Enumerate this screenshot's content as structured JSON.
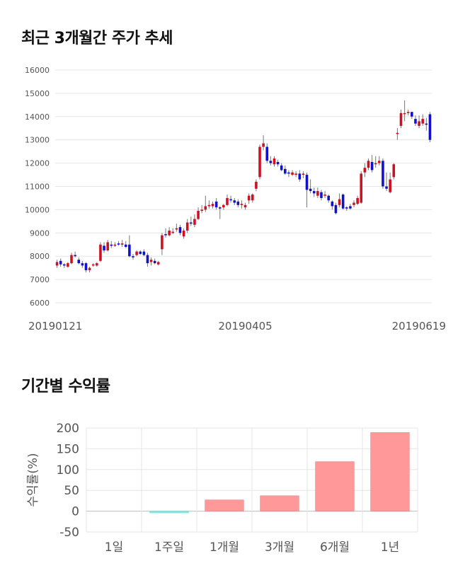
{
  "chart_data": [
    {
      "type": "candlestick",
      "title": "최근 3개월간 주가 추세",
      "y_ticks": [
        6000,
        7000,
        8000,
        9000,
        10000,
        11000,
        12000,
        13000,
        14000,
        15000,
        16000
      ],
      "ylim": [
        6000,
        16000
      ],
      "x_labels": [
        "20190121",
        "20190405",
        "20190619"
      ],
      "x_label_index": [
        0,
        52,
        104
      ],
      "colors": {
        "up": "#cc1122",
        "down": "#1111cc",
        "grid": "#e6e6e6"
      },
      "candles": [
        [
          7600,
          7750,
          7500,
          7850
        ],
        [
          7800,
          7650,
          7550,
          7900
        ],
        [
          7650,
          7600,
          7500,
          7700
        ],
        [
          7550,
          7700,
          7500,
          7750
        ],
        [
          7700,
          8050,
          7650,
          8150
        ],
        [
          8050,
          8000,
          7950,
          8200
        ],
        [
          7850,
          7700,
          7650,
          7950
        ],
        [
          7700,
          7600,
          7500,
          7800
        ],
        [
          7700,
          7400,
          7300,
          7750
        ],
        [
          7400,
          7500,
          7300,
          7550
        ],
        [
          7600,
          7650,
          7550,
          7700
        ],
        [
          7600,
          7700,
          7550,
          7750
        ],
        [
          7800,
          8500,
          7750,
          8600
        ],
        [
          8450,
          8250,
          8150,
          8600
        ],
        [
          8250,
          8600,
          8200,
          8700
        ],
        [
          8500,
          8450,
          8350,
          8650
        ],
        [
          8450,
          8500,
          8400,
          8600
        ],
        [
          8550,
          8500,
          8450,
          8650
        ],
        [
          8500,
          8550,
          8400,
          8700
        ],
        [
          8500,
          8400,
          8350,
          8650
        ],
        [
          8500,
          8000,
          7950,
          8900
        ],
        [
          8000,
          7950,
          7850,
          8100
        ],
        [
          8050,
          8200,
          8000,
          8250
        ],
        [
          8200,
          8100,
          8050,
          8250
        ],
        [
          8200,
          8050,
          8000,
          8300
        ],
        [
          8050,
          7700,
          7550,
          8150
        ],
        [
          7750,
          7850,
          7600,
          7950
        ],
        [
          7800,
          7700,
          7650,
          7900
        ],
        [
          7650,
          7750,
          7600,
          7800
        ],
        [
          8300,
          8900,
          8050,
          9000
        ],
        [
          8950,
          8900,
          8800,
          9200
        ],
        [
          8900,
          9100,
          8850,
          9250
        ],
        [
          9000,
          9050,
          8950,
          9200
        ],
        [
          9150,
          9200,
          9050,
          9400
        ],
        [
          9250,
          9000,
          8900,
          9350
        ],
        [
          8850,
          9100,
          8750,
          9200
        ],
        [
          9100,
          9450,
          9000,
          9600
        ],
        [
          9450,
          9400,
          9300,
          9700
        ],
        [
          9350,
          9600,
          9250,
          9800
        ],
        [
          9600,
          9950,
          9550,
          10100
        ],
        [
          9950,
          10000,
          9850,
          10200
        ],
        [
          10000,
          10150,
          9900,
          10600
        ],
        [
          10150,
          10200,
          10050,
          10400
        ],
        [
          10150,
          10250,
          10050,
          10350
        ],
        [
          10350,
          10100,
          10000,
          10500
        ],
        [
          10100,
          10050,
          9600,
          10150
        ],
        [
          10100,
          10200,
          10000,
          10250
        ],
        [
          10200,
          10500,
          10150,
          10650
        ],
        [
          10450,
          10400,
          10300,
          10600
        ],
        [
          10400,
          10300,
          10200,
          10500
        ],
        [
          10350,
          10200,
          10100,
          10450
        ],
        [
          10200,
          10250,
          10050,
          10400
        ],
        [
          10100,
          10200,
          10000,
          10300
        ],
        [
          10400,
          10600,
          10250,
          10700
        ],
        [
          10400,
          10650,
          10300,
          10700
        ],
        [
          10900,
          11200,
          10800,
          11300
        ],
        [
          11400,
          12700,
          11300,
          12800
        ],
        [
          12700,
          12850,
          12550,
          13200
        ],
        [
          12700,
          12100,
          12000,
          12850
        ],
        [
          12100,
          12000,
          11900,
          12300
        ],
        [
          11950,
          12200,
          11850,
          12300
        ],
        [
          12050,
          11950,
          11850,
          12150
        ],
        [
          11900,
          11700,
          11650,
          12000
        ],
        [
          11750,
          11550,
          11500,
          11900
        ],
        [
          11600,
          11550,
          11400,
          11700
        ],
        [
          11500,
          11600,
          11450,
          11700
        ],
        [
          11500,
          11550,
          11400,
          11650
        ],
        [
          11550,
          11300,
          11200,
          11700
        ],
        [
          11500,
          11550,
          11350,
          11650
        ],
        [
          11500,
          10850,
          10100,
          11600
        ],
        [
          10900,
          10800,
          10700,
          11300
        ],
        [
          10800,
          10700,
          10550,
          10950
        ],
        [
          10600,
          10800,
          10500,
          10950
        ],
        [
          10750,
          10500,
          10400,
          10850
        ],
        [
          10600,
          10650,
          10500,
          10800
        ],
        [
          10600,
          10400,
          10300,
          10650
        ],
        [
          10350,
          10150,
          10000,
          10400
        ],
        [
          10200,
          9850,
          9800,
          10300
        ],
        [
          10200,
          10450,
          10100,
          10700
        ],
        [
          10650,
          10050,
          10000,
          10700
        ],
        [
          10100,
          10050,
          9950,
          10150
        ],
        [
          10150,
          10050,
          10000,
          10250
        ],
        [
          10200,
          10300,
          10100,
          10400
        ],
        [
          10250,
          10500,
          10200,
          10600
        ],
        [
          10300,
          11550,
          10250,
          11650
        ],
        [
          11600,
          11800,
          11400,
          12000
        ],
        [
          11800,
          12100,
          11700,
          12200
        ],
        [
          12050,
          11700,
          11600,
          12350
        ],
        [
          11950,
          12000,
          11800,
          12300
        ],
        [
          12000,
          12100,
          11900,
          12300
        ],
        [
          12100,
          11000,
          10900,
          12200
        ],
        [
          11000,
          10900,
          10800,
          11600
        ],
        [
          10750,
          11300,
          10700,
          11600
        ],
        [
          11400,
          11950,
          11300,
          12000
        ],
        [
          13250,
          13300,
          13000,
          13500
        ],
        [
          13600,
          14150,
          13500,
          14300
        ],
        [
          14150,
          14150,
          13800,
          14700
        ],
        [
          14150,
          14200,
          14050,
          14300
        ],
        [
          14200,
          14000,
          13900,
          14200
        ],
        [
          13900,
          13700,
          13600,
          14050
        ],
        [
          13600,
          13800,
          13500,
          14050
        ],
        [
          13700,
          13900,
          13600,
          14100
        ],
        [
          13700,
          13650,
          13400,
          13950
        ],
        [
          14100,
          13000,
          12900,
          14200
        ]
      ]
    },
    {
      "type": "bar",
      "title": "기간별 수익률",
      "ylabel": "수익률(%)",
      "categories": [
        "1일",
        "1주일",
        "1개월",
        "3개월",
        "6개월",
        "1년"
      ],
      "values": [
        0,
        -4,
        27,
        37,
        119,
        189
      ],
      "y_ticks": [
        -50,
        0,
        50,
        100,
        150,
        200
      ],
      "ylim": [
        -50,
        200
      ],
      "colors": {
        "positive": "#ff9999",
        "negative": "#99e6e6",
        "grid": "#e6e6e6"
      }
    }
  ]
}
